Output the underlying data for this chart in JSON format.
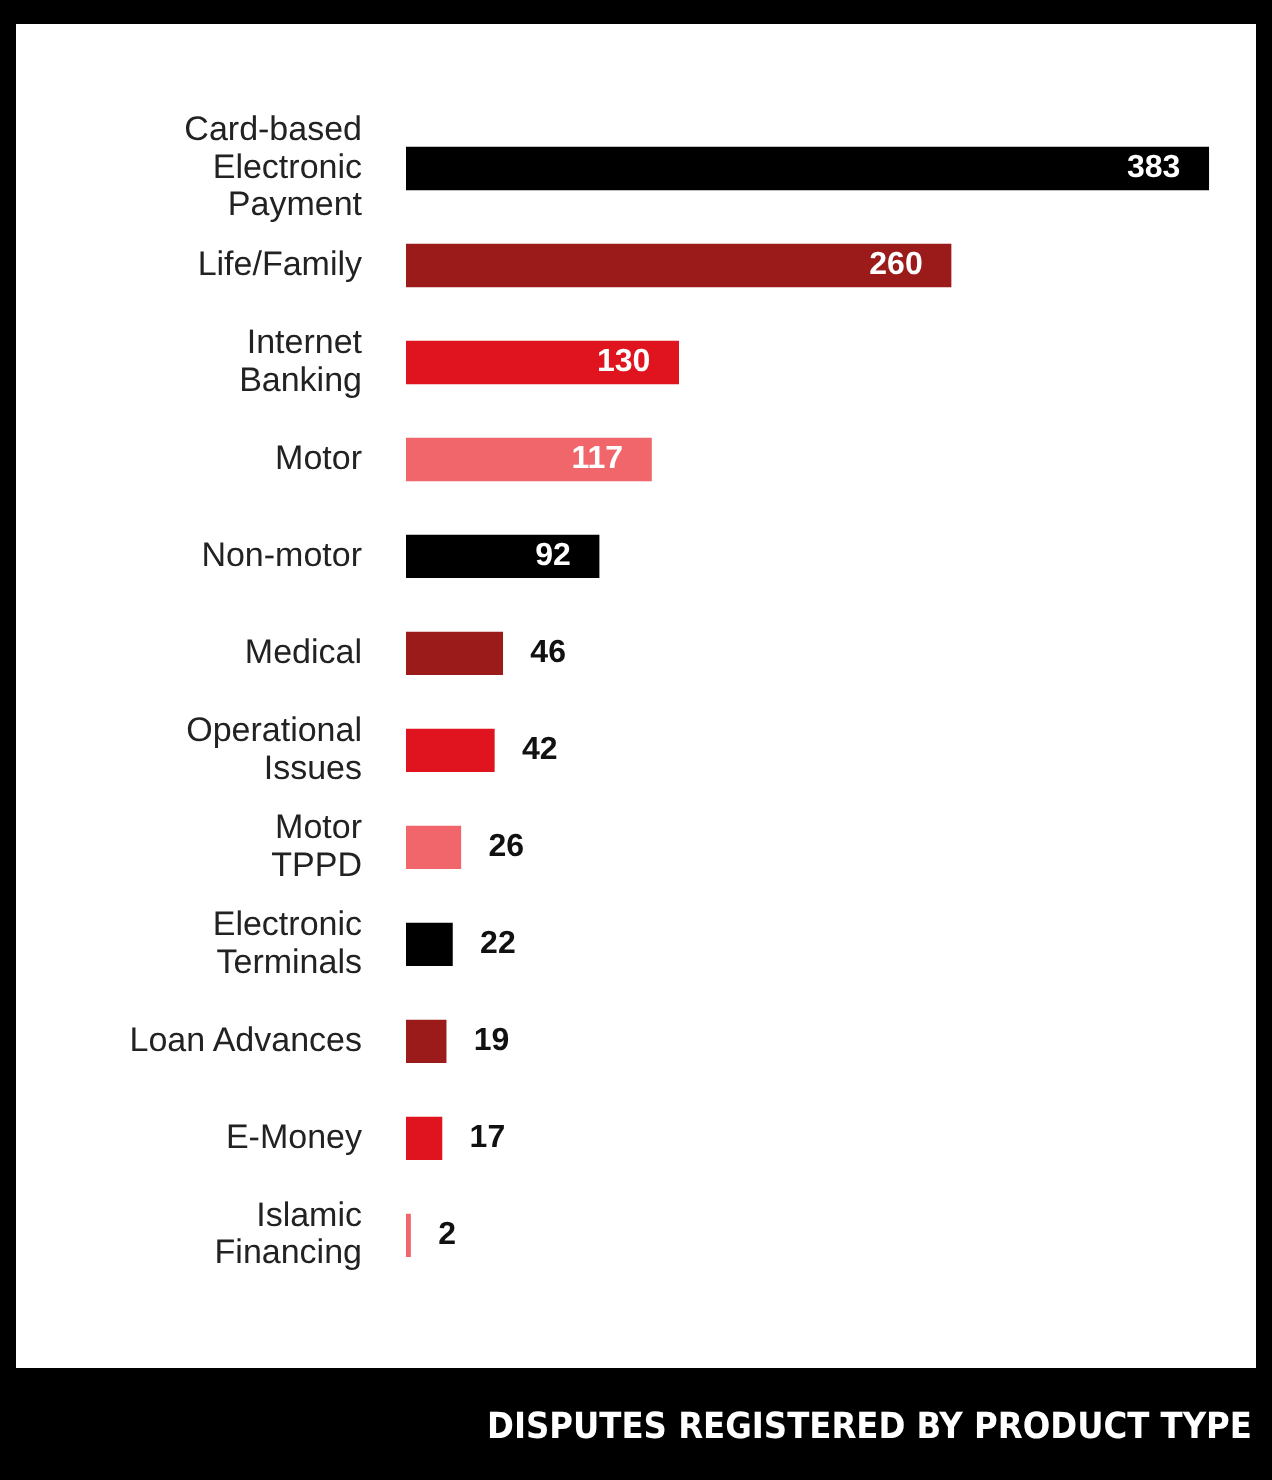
{
  "chart_data": {
    "type": "bar",
    "orientation": "horizontal",
    "title": "DISPUTES REGISTERED BY PRODUCT TYPE",
    "categories": [
      "Card-based\nElectronic\nPayment",
      "Life/Family",
      "Internet\nBanking",
      "Motor",
      "Non-motor",
      "Medical",
      "Operational\nIssues",
      "Motor\nTPPD",
      "Electronic\nTerminals",
      "Loan Advances",
      "E-Money",
      "Islamic\nFinancing"
    ],
    "values": [
      383,
      260,
      130,
      117,
      92,
      46,
      42,
      26,
      22,
      19,
      17,
      2
    ],
    "colors": [
      "#000000",
      "#9b1b1b",
      "#e0141e",
      "#f0666a",
      "#000000",
      "#9b1b1b",
      "#e0141e",
      "#f0666a",
      "#000000",
      "#9b1b1b",
      "#e0141e",
      "#f0666a"
    ],
    "data_labels": true,
    "legend": false
  }
}
